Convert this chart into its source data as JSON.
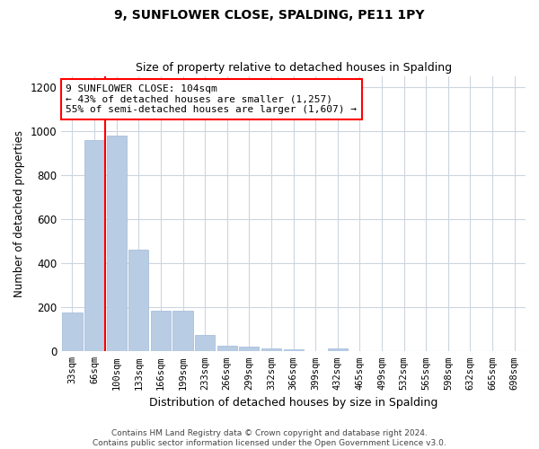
{
  "title": "9, SUNFLOWER CLOSE, SPALDING, PE11 1PY",
  "subtitle": "Size of property relative to detached houses in Spalding",
  "xlabel": "Distribution of detached houses by size in Spalding",
  "ylabel": "Number of detached properties",
  "categories": [
    "33sqm",
    "66sqm",
    "100sqm",
    "133sqm",
    "166sqm",
    "199sqm",
    "233sqm",
    "266sqm",
    "299sqm",
    "332sqm",
    "366sqm",
    "399sqm",
    "432sqm",
    "465sqm",
    "499sqm",
    "532sqm",
    "565sqm",
    "598sqm",
    "632sqm",
    "665sqm",
    "698sqm"
  ],
  "values": [
    175,
    960,
    980,
    460,
    185,
    185,
    75,
    25,
    20,
    15,
    10,
    0,
    15,
    0,
    0,
    0,
    0,
    0,
    0,
    0,
    0
  ],
  "bar_color": "#b8cce4",
  "bar_edge_color": "#a0b8d8",
  "vline_color": "#ff0000",
  "vline_index": 2,
  "annotation_text": "9 SUNFLOWER CLOSE: 104sqm\n← 43% of detached houses are smaller (1,257)\n55% of semi-detached houses are larger (1,607) →",
  "annotation_box_color": "#ffffff",
  "annotation_border_color": "#ff0000",
  "ylim": [
    0,
    1250
  ],
  "yticks": [
    0,
    200,
    400,
    600,
    800,
    1000,
    1200
  ],
  "footer_line1": "Contains HM Land Registry data © Crown copyright and database right 2024.",
  "footer_line2": "Contains public sector information licensed under the Open Government Licence v3.0.",
  "background_color": "#ffffff",
  "grid_color": "#cdd5e0",
  "bar_width": 0.9
}
